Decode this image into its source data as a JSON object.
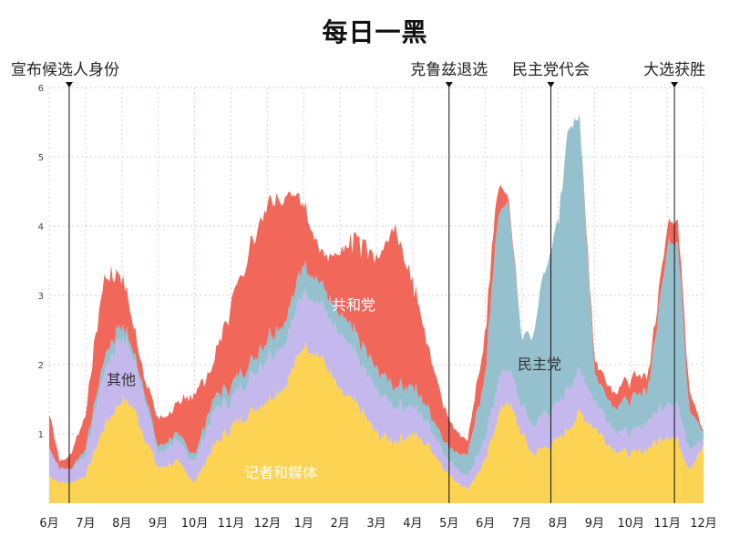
{
  "chart_data": {
    "type": "area",
    "title": "每日一黑",
    "xlabel": "",
    "ylabel": "",
    "ylim": [
      0,
      6
    ],
    "yticks": [
      1,
      2,
      3,
      4,
      5,
      6
    ],
    "x_ticks": [
      "6月",
      "7月",
      "8月",
      "9月",
      "10月",
      "11月",
      "12月",
      "1月",
      "2月",
      "3月",
      "4月",
      "5月",
      "6月",
      "7月",
      "8月",
      "9月",
      "10月",
      "11月",
      "12月"
    ],
    "x": [
      0,
      0.3,
      0.6,
      1.0,
      1.5,
      2.0,
      2.3,
      2.6,
      3.0,
      3.5,
      4.0,
      4.5,
      5.0,
      5.5,
      6.0,
      6.5,
      7.0,
      7.5,
      8.0,
      8.5,
      9.0,
      9.5,
      10.0,
      10.5,
      11.0,
      11.5,
      12.0,
      12.3,
      12.6,
      13.0,
      13.3,
      13.6,
      14.0,
      14.3,
      14.6,
      15.0,
      15.5,
      16.0,
      16.5,
      17.0,
      17.3,
      17.6,
      18.0
    ],
    "series": [
      {
        "name": "记者和媒体",
        "color": "#fcd353",
        "values": [
          0.4,
          0.3,
          0.3,
          0.4,
          1.1,
          1.5,
          1.4,
          1.0,
          0.5,
          0.6,
          0.3,
          0.8,
          1.1,
          1.3,
          1.5,
          1.7,
          2.3,
          2.1,
          1.6,
          1.4,
          1.0,
          0.9,
          1.0,
          0.8,
          0.4,
          0.2,
          0.6,
          1.2,
          1.5,
          1.0,
          0.7,
          0.8,
          0.9,
          1.1,
          1.3,
          1.1,
          0.8,
          0.7,
          0.8,
          1.0,
          0.9,
          0.5,
          0.8
        ]
      },
      {
        "name": "其他",
        "color": "#c5b8ec",
        "values": [
          0.4,
          0.2,
          0.2,
          0.3,
          0.8,
          0.9,
          0.7,
          0.6,
          0.2,
          0.3,
          0.3,
          0.5,
          0.4,
          0.5,
          0.6,
          0.6,
          0.8,
          0.8,
          0.8,
          0.7,
          0.6,
          0.5,
          0.4,
          0.3,
          0.2,
          0.2,
          0.3,
          0.5,
          0.5,
          0.4,
          0.4,
          0.5,
          0.5,
          0.6,
          0.6,
          0.4,
          0.3,
          0.3,
          0.4,
          0.5,
          0.5,
          0.3,
          0.1
        ]
      },
      {
        "name": "民主党",
        "color": "#95c1cf",
        "values": [
          0.0,
          0.0,
          0.0,
          0.1,
          0.2,
          0.2,
          0.1,
          0.1,
          0.1,
          0.1,
          0.1,
          0.2,
          0.2,
          0.2,
          0.3,
          0.3,
          0.4,
          0.3,
          0.3,
          0.3,
          0.3,
          0.3,
          0.3,
          0.2,
          0.2,
          0.3,
          0.9,
          2.3,
          2.5,
          1.0,
          1.3,
          2.0,
          2.6,
          3.8,
          3.6,
          0.4,
          0.3,
          0.5,
          0.5,
          2.3,
          2.4,
          0.6,
          0.1
        ]
      },
      {
        "name": "共和党",
        "color": "#f1675a",
        "values": [
          0.5,
          0.1,
          0.2,
          0.5,
          1.2,
          0.7,
          0.4,
          0.2,
          0.4,
          0.4,
          0.9,
          0.5,
          1.2,
          1.6,
          2.0,
          1.8,
          0.9,
          0.4,
          0.9,
          1.4,
          1.6,
          2.3,
          1.5,
          0.8,
          0.4,
          0.2,
          0.6,
          0.5,
          0.1,
          0.0,
          0.0,
          0.0,
          0.0,
          0.0,
          0.0,
          0.2,
          0.2,
          0.3,
          0.2,
          0.3,
          0.3,
          0.3,
          0.0
        ]
      }
    ],
    "series_labels": [
      {
        "text": "记者和媒体",
        "series": "记者和媒体"
      },
      {
        "text": "其他",
        "series": "其他"
      },
      {
        "text": "民主党",
        "series": "民主党"
      },
      {
        "text": "共和党",
        "series": "共和党"
      }
    ],
    "annotations": [
      {
        "text": "宣布候选人身份",
        "x": 0.55
      },
      {
        "text": "克鲁兹退选",
        "x": 11.0
      },
      {
        "text": "民主党代会",
        "x": 13.8
      },
      {
        "text": "大选获胜",
        "x": 17.2
      }
    ]
  }
}
